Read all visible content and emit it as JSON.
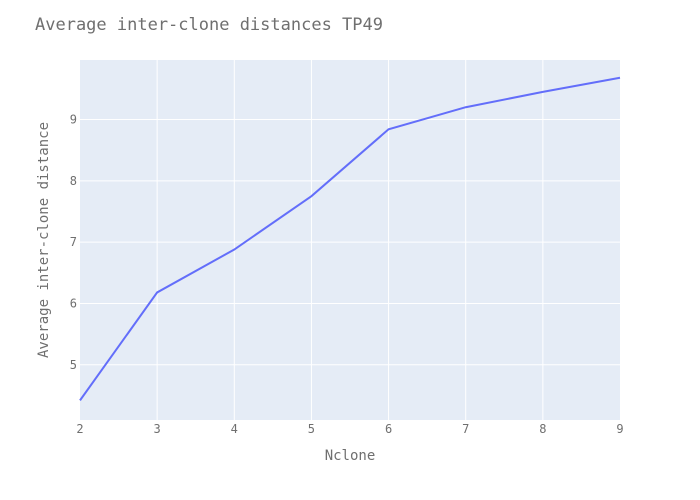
{
  "chart_data": {
    "type": "line",
    "title": "Average inter-clone distances TP49",
    "xlabel": "Nclone",
    "ylabel": "Average inter-clone distance",
    "x": [
      2,
      3,
      4,
      5,
      6,
      7,
      8,
      9
    ],
    "series": [
      {
        "values": [
          4.42,
          6.18,
          6.88,
          7.75,
          8.84,
          9.2,
          9.45,
          9.68
        ]
      }
    ],
    "xlim": [
      2,
      9
    ],
    "ylim": [
      4.1,
      9.97
    ],
    "xticks": [
      2,
      3,
      4,
      5,
      6,
      7,
      8,
      9
    ],
    "yticks": [
      5,
      6,
      7,
      8,
      9
    ],
    "grid": true,
    "colors": {
      "plot_bg": "#e5ecf6",
      "grid": "#ffffff",
      "line": "#636efa",
      "text": "#6f6f6f"
    }
  }
}
